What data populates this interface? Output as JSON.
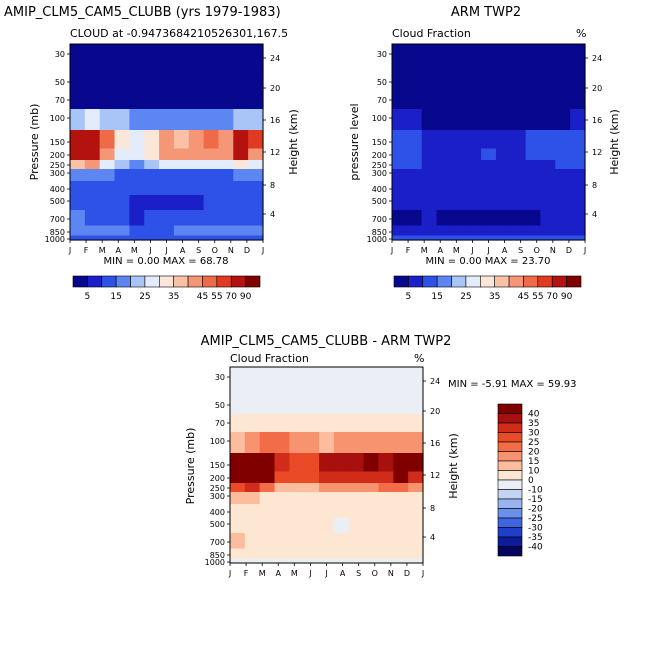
{
  "palettes": {
    "abs": [
      "#08088f",
      "#1a1fc7",
      "#2e52e8",
      "#5d86f2",
      "#a9c4f7",
      "#e3ecfb",
      "#fbe6da",
      "#f9c1a6",
      "#f59676",
      "#ef6a48",
      "#e13a22",
      "#b4120f",
      "#800000"
    ],
    "diff": [
      "#800000",
      "#a80f0f",
      "#d12c1a",
      "#ea4a26",
      "#f26c48",
      "#f7936f",
      "#fbbd9d",
      "#fde6d2",
      "#ebeef5",
      "#c3d3f2",
      "#99b4f0",
      "#6b90ea",
      "#3e64e0",
      "#1f3ec9",
      "#0c1c98",
      "#050560"
    ]
  },
  "months": [
    "J",
    "F",
    "M",
    "A",
    "M",
    "J",
    "J",
    "A",
    "S",
    "O",
    "N",
    "D",
    "J"
  ],
  "pressure_ticks": [
    "30",
    "50",
    "70",
    "100",
    "150",
    "200",
    "250",
    "300",
    "400",
    "500",
    "700",
    "850",
    "1000"
  ],
  "height_ticks": [
    "24",
    "20",
    "16",
    "12",
    "8",
    "4"
  ],
  "panels": {
    "p1": {
      "title": "AMIP_CLM5_CAM5_CLUBB (yrs 1979-1983)",
      "subtitle": "CLOUD at -0.9473684210526301,167.5",
      "ylabel": "Pressure (mb)",
      "yrlabel": "Height (km)",
      "minmax": "MIN =   0.00 MAX =  68.78"
    },
    "p2": {
      "title": "ARM TWP2",
      "subtitle": "Cloud Fraction",
      "unit": "%",
      "ylabel": "pressure level",
      "yrlabel": "Height (km)",
      "minmax": "MIN =   0.00 MAX =  23.70"
    },
    "p3": {
      "title": "AMIP_CLM5_CAM5_CLUBB - ARM TWP2",
      "subtitle": "Cloud Fraction",
      "unit": "%",
      "ylabel": "Pressure (mb)",
      "yrlabel": "Height (km)",
      "minmax": "MIN =  -5.91 MAX =  59.93"
    }
  },
  "colorbar_abs_labels": [
    "5",
    "15",
    "25",
    "35",
    "45",
    "55",
    "70",
    "90"
  ],
  "colorbar_diff_labels": [
    "40",
    "35",
    "30",
    "25",
    "20",
    "15",
    "10",
    "0",
    "-10",
    "-15",
    "-20",
    "-25",
    "-30",
    "-35",
    "-40"
  ],
  "chart_data": [
    {
      "type": "heatmap",
      "title": "AMIP_CLM5_CAM5_CLUBB (yrs 1979-1983)",
      "subtitle": "CLOUD at -0.9473684210526301,167.5",
      "xlabel": "",
      "ylabel": "Pressure (mb)",
      "y2label": "Height (km)",
      "x": [
        "J",
        "F",
        "M",
        "A",
        "M",
        "J",
        "J",
        "A",
        "S",
        "O",
        "N",
        "D",
        "J"
      ],
      "y": [
        30,
        50,
        70,
        100,
        150,
        200,
        250,
        300,
        400,
        500,
        700,
        850,
        1000
      ],
      "levels": [
        5,
        15,
        25,
        35,
        45,
        55,
        70,
        90
      ],
      "min": 0.0,
      "max": 68.78,
      "values": [
        [
          2,
          2,
          2,
          2,
          2,
          2,
          2,
          2,
          2,
          2,
          2,
          2,
          2
        ],
        [
          2,
          2,
          2,
          2,
          2,
          2,
          2,
          2,
          2,
          2,
          2,
          2,
          2
        ],
        [
          2,
          2,
          2,
          2,
          2,
          2,
          2,
          2,
          2,
          2,
          2,
          2,
          2
        ],
        [
          20,
          25,
          20,
          22,
          15,
          15,
          15,
          15,
          15,
          15,
          18,
          20,
          20
        ],
        [
          65,
          68,
          45,
          30,
          25,
          30,
          40,
          38,
          40,
          45,
          42,
          62,
          50
        ],
        [
          60,
          62,
          42,
          28,
          28,
          32,
          40,
          40,
          42,
          40,
          40,
          55,
          40
        ],
        [
          35,
          40,
          28,
          20,
          18,
          20,
          25,
          25,
          25,
          25,
          26,
          30,
          26
        ],
        [
          18,
          18,
          15,
          12,
          12,
          12,
          12,
          12,
          12,
          12,
          12,
          15,
          15
        ],
        [
          12,
          12,
          12,
          12,
          10,
          10,
          10,
          10,
          10,
          12,
          12,
          12,
          12
        ],
        [
          12,
          10,
          10,
          10,
          8,
          8,
          8,
          8,
          8,
          10,
          10,
          10,
          10
        ],
        [
          15,
          12,
          10,
          10,
          8,
          10,
          12,
          12,
          10,
          10,
          12,
          12,
          12
        ],
        [
          15,
          15,
          15,
          15,
          12,
          12,
          12,
          15,
          15,
          15,
          15,
          15,
          15
        ],
        [
          10,
          10,
          10,
          10,
          10,
          10,
          10,
          10,
          10,
          10,
          10,
          10,
          10
        ]
      ]
    },
    {
      "type": "heatmap",
      "title": "ARM TWP2",
      "subtitle": "Cloud Fraction",
      "xlabel": "",
      "ylabel": "pressure level",
      "y2label": "Height (km)",
      "x": [
        "J",
        "F",
        "M",
        "A",
        "M",
        "J",
        "J",
        "A",
        "S",
        "O",
        "N",
        "D",
        "J"
      ],
      "y": [
        30,
        50,
        70,
        100,
        150,
        200,
        250,
        300,
        400,
        500,
        700,
        850,
        1000
      ],
      "levels": [
        5,
        15,
        25,
        35,
        45,
        55,
        70,
        90
      ],
      "min": 0.0,
      "max": 23.7,
      "values": [
        [
          1,
          1,
          1,
          1,
          1,
          1,
          1,
          1,
          1,
          1,
          1,
          1,
          1
        ],
        [
          1,
          1,
          1,
          1,
          1,
          1,
          1,
          1,
          1,
          1,
          1,
          1,
          1
        ],
        [
          1,
          1,
          1,
          1,
          1,
          1,
          1,
          1,
          1,
          1,
          1,
          1,
          1
        ],
        [
          8,
          5,
          3,
          3,
          2,
          2,
          2,
          2,
          2,
          3,
          3,
          4,
          8
        ],
        [
          12,
          10,
          8,
          6,
          5,
          6,
          6,
          6,
          8,
          10,
          10,
          12,
          14
        ],
        [
          12,
          10,
          8,
          8,
          6,
          8,
          10,
          8,
          8,
          10,
          12,
          12,
          12
        ],
        [
          10,
          10,
          8,
          8,
          8,
          8,
          8,
          8,
          8,
          8,
          8,
          10,
          10
        ],
        [
          8,
          8,
          8,
          8,
          6,
          6,
          6,
          6,
          8,
          8,
          8,
          8,
          8
        ],
        [
          8,
          6,
          6,
          6,
          6,
          6,
          6,
          8,
          6,
          6,
          6,
          6,
          6
        ],
        [
          6,
          6,
          6,
          6,
          6,
          6,
          6,
          6,
          6,
          6,
          6,
          6,
          6
        ],
        [
          4,
          4,
          6,
          4,
          4,
          4,
          4,
          4,
          4,
          4,
          6,
          6,
          6
        ],
        [
          6,
          6,
          6,
          6,
          6,
          6,
          6,
          6,
          6,
          6,
          6,
          6,
          6
        ],
        [
          12,
          12,
          12,
          12,
          12,
          12,
          12,
          12,
          12,
          12,
          12,
          12,
          12
        ]
      ]
    },
    {
      "type": "heatmap",
      "title": "AMIP_CLM5_CAM5_CLUBB - ARM TWP2",
      "subtitle": "Cloud Fraction",
      "xlabel": "",
      "ylabel": "Pressure (mb)",
      "y2label": "Height (km)",
      "x": [
        "J",
        "F",
        "M",
        "A",
        "M",
        "J",
        "J",
        "A",
        "S",
        "O",
        "N",
        "D",
        "J"
      ],
      "y": [
        30,
        50,
        70,
        100,
        150,
        200,
        250,
        300,
        400,
        500,
        700,
        850,
        1000
      ],
      "levels": [
        -40,
        -35,
        -30,
        -25,
        -20,
        -15,
        -10,
        0,
        10,
        15,
        20,
        25,
        30,
        35,
        40
      ],
      "min": -5.91,
      "max": 59.93,
      "values": [
        [
          -2,
          -2,
          -2,
          -2,
          -2,
          -2,
          -2,
          -2,
          -2,
          -2,
          -2,
          -2,
          -2
        ],
        [
          -1,
          -1,
          -1,
          -1,
          -1,
          -1,
          -1,
          -1,
          -1,
          -1,
          -1,
          -1,
          -1
        ],
        [
          2,
          2,
          2,
          3,
          4,
          3,
          3,
          3,
          3,
          3,
          2,
          2,
          2
        ],
        [
          12,
          18,
          20,
          22,
          15,
          15,
          14,
          15,
          15,
          15,
          15,
          16,
          15
        ],
        [
          55,
          58,
          45,
          30,
          25,
          28,
          35,
          35,
          35,
          40,
          38,
          50,
          40
        ],
        [
          50,
          52,
          40,
          25,
          25,
          28,
          32,
          32,
          32,
          30,
          32,
          45,
          30
        ],
        [
          28,
          30,
          22,
          14,
          12,
          14,
          18,
          18,
          18,
          18,
          20,
          22,
          18
        ],
        [
          10,
          10,
          8,
          5,
          5,
          5,
          6,
          6,
          6,
          5,
          5,
          8,
          8
        ],
        [
          4,
          5,
          5,
          5,
          4,
          3,
          2,
          2,
          3,
          4,
          5,
          5,
          5
        ],
        [
          5,
          4,
          4,
          4,
          3,
          2,
          2,
          -2,
          2,
          4,
          4,
          4,
          4
        ],
        [
          10,
          8,
          5,
          5,
          4,
          5,
          7,
          7,
          5,
          5,
          6,
          6,
          6
        ],
        [
          8,
          8,
          8,
          8,
          6,
          6,
          6,
          8,
          8,
          8,
          8,
          8,
          8
        ],
        [
          -2,
          -2,
          -2,
          -2,
          -2,
          -2,
          -2,
          -2,
          -2,
          -2,
          -2,
          -2,
          -2
        ]
      ]
    }
  ]
}
